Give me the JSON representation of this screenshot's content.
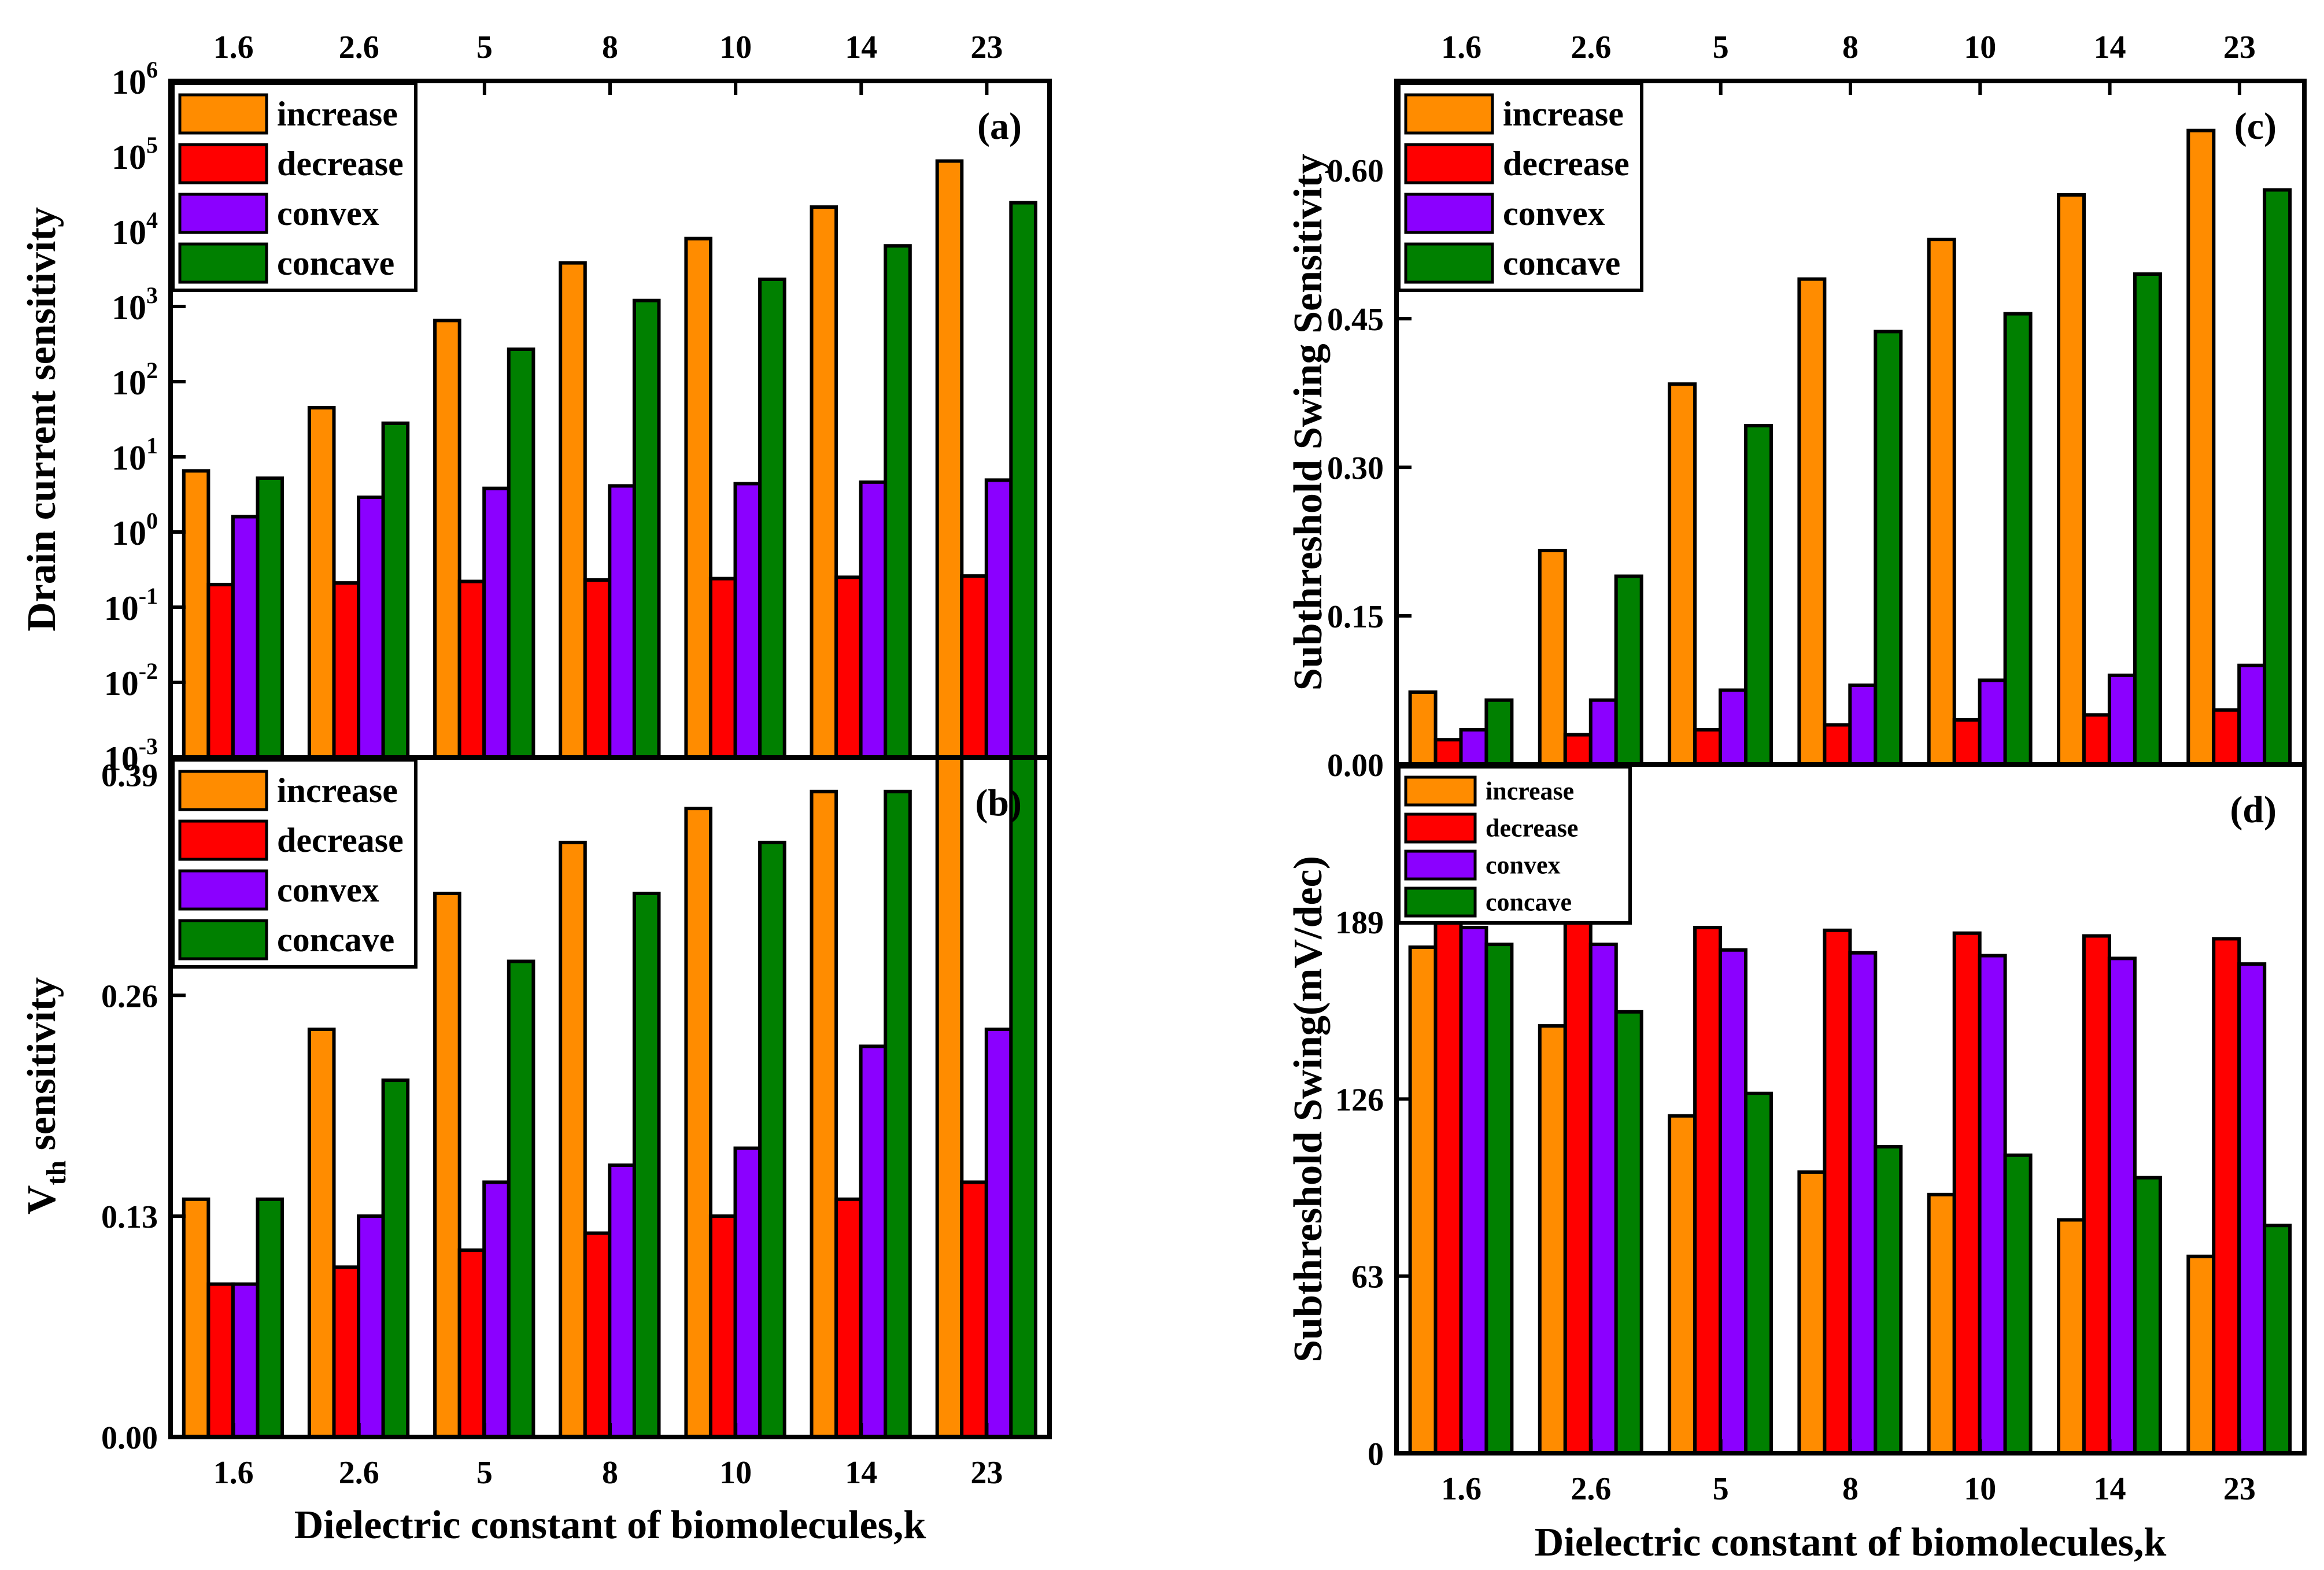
{
  "figure": {
    "shared_categories": [
      "1.6",
      "2.6",
      "5",
      "8",
      "10",
      "14",
      "23"
    ],
    "shared_xlabel": "Dielectric constant of biomolecules,k",
    "series_colors": {
      "increase": "#FF8C00",
      "decrease": "#FF0000",
      "convex": "#8B00FF",
      "concave": "#008000"
    }
  },
  "chart_data": [
    {
      "id": "a",
      "panel_label": "(a)",
      "type": "bar",
      "yscale": "log",
      "ylabel": "Drain current sensitivity",
      "xlabel": "",
      "categories": [
        "1.6",
        "2.6",
        "5",
        "8",
        "10",
        "14",
        "23"
      ],
      "ylim": [
        0.001,
        1000000
      ],
      "yticks": [
        {
          "value": 0.001,
          "base": "10",
          "exp": "-3"
        },
        {
          "value": 0.01,
          "base": "10",
          "exp": "-2"
        },
        {
          "value": 0.1,
          "base": "10",
          "exp": "-1"
        },
        {
          "value": 1,
          "base": "10",
          "exp": "0"
        },
        {
          "value": 10,
          "base": "10",
          "exp": "1"
        },
        {
          "value": 100,
          "base": "10",
          "exp": "2"
        },
        {
          "value": 1000,
          "base": "10",
          "exp": "3"
        },
        {
          "value": 10000,
          "base": "10",
          "exp": "4"
        },
        {
          "value": 100000,
          "base": "10",
          "exp": "5"
        },
        {
          "value": 1000000,
          "base": "10",
          "exp": "6"
        }
      ],
      "legend": {
        "position": "top-left",
        "entries": [
          "increase",
          "decrease",
          "convex",
          "concave"
        ]
      },
      "series": [
        {
          "name": "increase",
          "values": [
            6.5,
            45,
            650,
            3800,
            8000,
            21000,
            86000
          ]
        },
        {
          "name": "decrease",
          "values": [
            0.2,
            0.21,
            0.22,
            0.23,
            0.24,
            0.25,
            0.26
          ]
        },
        {
          "name": "convex",
          "values": [
            1.6,
            2.9,
            3.8,
            4.1,
            4.4,
            4.6,
            4.9
          ]
        },
        {
          "name": "concave",
          "values": [
            5.2,
            28,
            270,
            1200,
            2300,
            6400,
            24000
          ]
        }
      ]
    },
    {
      "id": "b",
      "panel_label": "(b)",
      "type": "bar",
      "yscale": "linear",
      "ylabel": "V",
      "ylabel_sub": "th",
      "ylabel_rest": " sensitivity",
      "xlabel": "Dielectric constant of biomolecules,k",
      "categories": [
        "1.6",
        "2.6",
        "5",
        "8",
        "10",
        "14",
        "23"
      ],
      "ylim": [
        0,
        0.4
      ],
      "yticks": [
        "0.00",
        "0.13",
        "0.26",
        "0.39"
      ],
      "ytick_values": [
        0,
        0.13,
        0.26,
        0.39
      ],
      "legend": {
        "position": "top-left",
        "entries": [
          "increase",
          "decrease",
          "convex",
          "concave"
        ]
      },
      "series": [
        {
          "name": "increase",
          "values": [
            0.14,
            0.24,
            0.32,
            0.35,
            0.37,
            0.38,
            0.4
          ]
        },
        {
          "name": "decrease",
          "values": [
            0.09,
            0.1,
            0.11,
            0.12,
            0.13,
            0.14,
            0.15
          ]
        },
        {
          "name": "convex",
          "values": [
            0.09,
            0.13,
            0.15,
            0.16,
            0.17,
            0.23,
            0.24
          ]
        },
        {
          "name": "concave",
          "values": [
            0.14,
            0.21,
            0.28,
            0.32,
            0.35,
            0.38,
            0.4
          ]
        }
      ]
    },
    {
      "id": "c",
      "panel_label": "(c)",
      "type": "bar",
      "yscale": "linear",
      "ylabel": "Subthreshold Swing Sensitivity",
      "xlabel": "",
      "categories": [
        "1.6",
        "2.6",
        "5",
        "8",
        "10",
        "14",
        "23"
      ],
      "ylim": [
        0,
        0.69
      ],
      "yticks": [
        "0.00",
        "0.15",
        "0.30",
        "0.45",
        "0.60"
      ],
      "ytick_values": [
        0,
        0.15,
        0.3,
        0.45,
        0.6
      ],
      "legend": {
        "position": "top-left",
        "entries": [
          "increase",
          "decrease",
          "convex",
          "concave"
        ]
      },
      "series": [
        {
          "name": "increase",
          "values": [
            0.073,
            0.216,
            0.384,
            0.49,
            0.53,
            0.575,
            0.64
          ]
        },
        {
          "name": "decrease",
          "values": [
            0.025,
            0.03,
            0.035,
            0.04,
            0.045,
            0.05,
            0.055
          ]
        },
        {
          "name": "convex",
          "values": [
            0.035,
            0.065,
            0.075,
            0.08,
            0.085,
            0.09,
            0.1
          ]
        },
        {
          "name": "concave",
          "values": [
            0.065,
            0.19,
            0.342,
            0.437,
            0.455,
            0.495,
            0.58
          ]
        }
      ]
    },
    {
      "id": "d",
      "panel_label": "(d)",
      "type": "bar",
      "yscale": "linear",
      "ylabel": "Subthreshold Swing(mV/dec)",
      "xlabel": "Dielectric constant of biomolecules,k",
      "categories": [
        "1.6",
        "2.6",
        "5",
        "8",
        "10",
        "14",
        "23"
      ],
      "ylim": [
        0,
        245
      ],
      "yticks": [
        "0",
        "63",
        "126",
        "189"
      ],
      "ytick_values": [
        0,
        63,
        126,
        189
      ],
      "legend": {
        "position": "top-left",
        "entries": [
          "increase",
          "decrease",
          "convex",
          "concave"
        ]
      },
      "series": [
        {
          "name": "increase",
          "values": [
            180,
            152,
            120,
            100,
            92,
            83,
            70
          ]
        },
        {
          "name": "decrease",
          "values": [
            190,
            189,
            187,
            186,
            185,
            184,
            183
          ]
        },
        {
          "name": "convex",
          "values": [
            187,
            181,
            179,
            178,
            177,
            176,
            174
          ]
        },
        {
          "name": "concave",
          "values": [
            181,
            157,
            128,
            109,
            106,
            98,
            81
          ]
        }
      ]
    }
  ]
}
